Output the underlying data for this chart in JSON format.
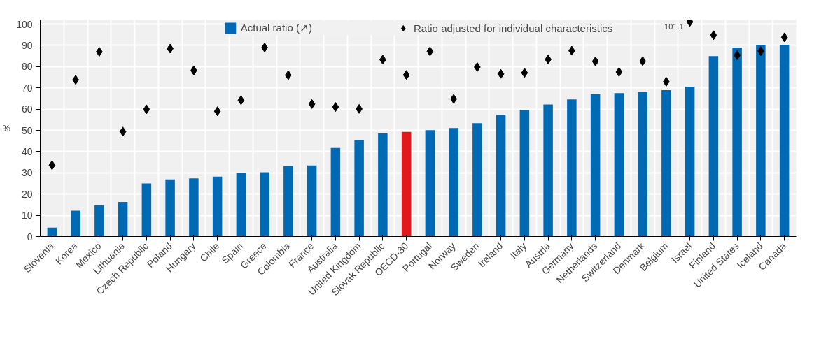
{
  "chart_data": {
    "type": "bar",
    "ylabel": "%",
    "categories": [
      "Slovenia",
      "Korea",
      "Mexico",
      "Lithuania",
      "Czech Republic",
      "Poland",
      "Hungary",
      "Chile",
      "Spain",
      "Greece",
      "Colombia",
      "France",
      "Australia",
      "United Kingdom",
      "Slovak Republic",
      "OECD-30",
      "Portugal",
      "Norway",
      "Sweden",
      "Ireland",
      "Italy",
      "Austria",
      "Germany",
      "Netherlands",
      "Switzerland",
      "Denmark",
      "Belgium",
      "Israel",
      "Finland",
      "United States",
      "Iceland",
      "Canada"
    ],
    "series": [
      {
        "name": "Actual ratio (↗)",
        "colors": [
          "#0069b4",
          "#0069b4",
          "#0069b4",
          "#0069b4",
          "#0069b4",
          "#0069b4",
          "#0069b4",
          "#0069b4",
          "#0069b4",
          "#0069b4",
          "#0069b4",
          "#0069b4",
          "#0069b4",
          "#0069b4",
          "#0069b4",
          "#e0191f",
          "#0069b4",
          "#0069b4",
          "#0069b4",
          "#0069b4",
          "#0069b4",
          "#0069b4",
          "#0069b4",
          "#0069b4",
          "#0069b4",
          "#0069b4",
          "#0069b4",
          "#0069b4",
          "#0069b4",
          "#0069b4",
          "#0069b4",
          "#0069b4"
        ],
        "values": [
          4.2,
          12.2,
          14.7,
          16.3,
          25.0,
          26.9,
          27.4,
          28.2,
          29.8,
          30.3,
          33.2,
          33.5,
          41.7,
          45.4,
          48.5,
          49.3,
          50.1,
          51.1,
          53.4,
          57.3,
          59.6,
          62.2,
          64.6,
          67.0,
          67.5,
          68.0,
          68.9,
          70.6,
          85.0,
          89.0,
          90.3,
          90.3
        ]
      },
      {
        "name": "Ratio adjusted for individual characteristics",
        "type": "scatter",
        "marker": "diamond",
        "color": "#000000",
        "values": [
          33.6,
          73.8,
          87.0,
          49.4,
          59.9,
          88.5,
          78.2,
          59.0,
          64.2,
          89.0,
          76.0,
          62.4,
          61.0,
          60.1,
          83.3,
          76.1,
          87.2,
          64.8,
          79.8,
          76.6,
          77.1,
          83.4,
          87.5,
          82.5,
          77.5,
          82.6,
          72.9,
          101.1,
          94.8,
          85.4,
          87.3,
          93.8
        ],
        "value_labels": [
          null,
          null,
          null,
          null,
          null,
          null,
          null,
          null,
          null,
          null,
          null,
          null,
          null,
          null,
          null,
          null,
          null,
          null,
          null,
          null,
          null,
          null,
          null,
          null,
          null,
          null,
          null,
          "101.1",
          null,
          null,
          null,
          null
        ]
      }
    ],
    "ylim": [
      0,
      102
    ],
    "yticks": [
      0,
      10,
      20,
      30,
      40,
      50,
      60,
      70,
      80,
      90,
      100
    ],
    "grid": true,
    "legend": "top"
  }
}
